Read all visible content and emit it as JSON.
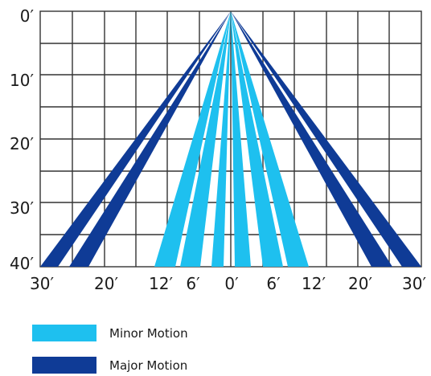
{
  "diagram": {
    "y_axis_labels": [
      "0′",
      "10′",
      "20′",
      "30′",
      "40′"
    ],
    "x_axis_labels": [
      "30′",
      "20′",
      "12′",
      "6′",
      "0′",
      "6′",
      "12′",
      "20′",
      "30′"
    ],
    "colors": {
      "minor": "#1ec0ef",
      "major": "#0f3b96",
      "grid": "#333333",
      "text": "#1a1a1a"
    },
    "legend": [
      {
        "label": "Minor Motion",
        "color": "#1ec0ef"
      },
      {
        "label": "Major Motion",
        "color": "#0f3b96"
      }
    ]
  }
}
